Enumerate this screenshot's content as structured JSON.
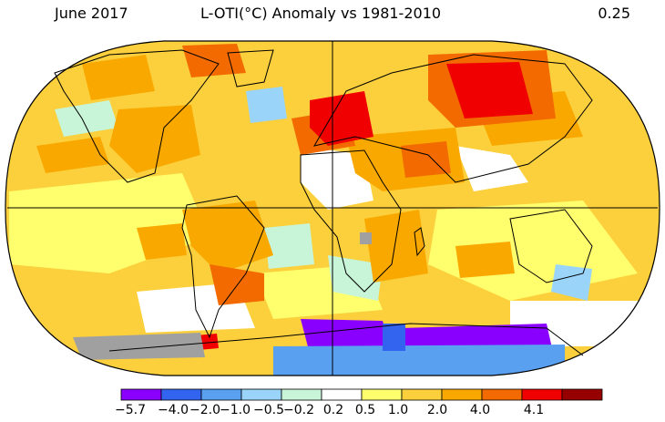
{
  "header": {
    "date": "June 2017",
    "title": "L-OTI(°C) Anomaly vs 1981-2010",
    "global_mean": "0.25"
  },
  "legend": {
    "ticks": [
      "−5.7",
      "−4.0",
      "−2.0",
      "−1.0",
      "−0.5",
      "−0.2",
      "0.2",
      "0.5",
      "1.0",
      "2.0",
      "4.0",
      "4.1"
    ],
    "colors": [
      "#8a00ff",
      "#3264f0",
      "#5aa0f0",
      "#9ad4f8",
      "#c8f4d8",
      "#ffffff",
      "#ffff6e",
      "#fbd03c",
      "#f9a800",
      "#f26a00",
      "#f00000",
      "#960000"
    ]
  },
  "map": {
    "projection": "Robinson",
    "no_data_color": "#a0a0a0",
    "coastline_color": "#000000"
  }
}
